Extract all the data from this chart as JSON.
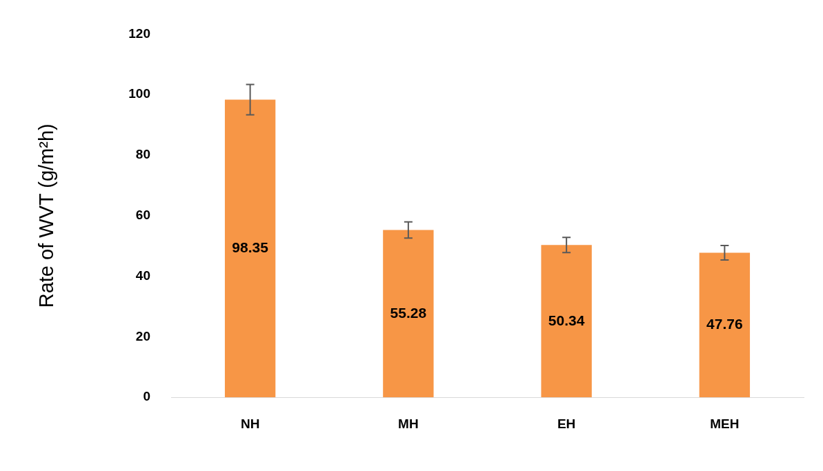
{
  "chart_data": {
    "type": "bar",
    "ylabel": "Rate of WVT (g/m²h)",
    "categories": [
      "NH",
      "MH",
      "EH",
      "MEH"
    ],
    "values": [
      98.35,
      55.28,
      50.34,
      47.76
    ],
    "color": "#f79646",
    "errors": [
      5,
      2.7,
      2.5,
      2.4
    ],
    "ylim": [
      0,
      120
    ],
    "yticks": [
      0,
      20,
      40,
      60,
      80,
      100,
      120
    ],
    "grid": false,
    "legend": false,
    "data_labels": true
  }
}
